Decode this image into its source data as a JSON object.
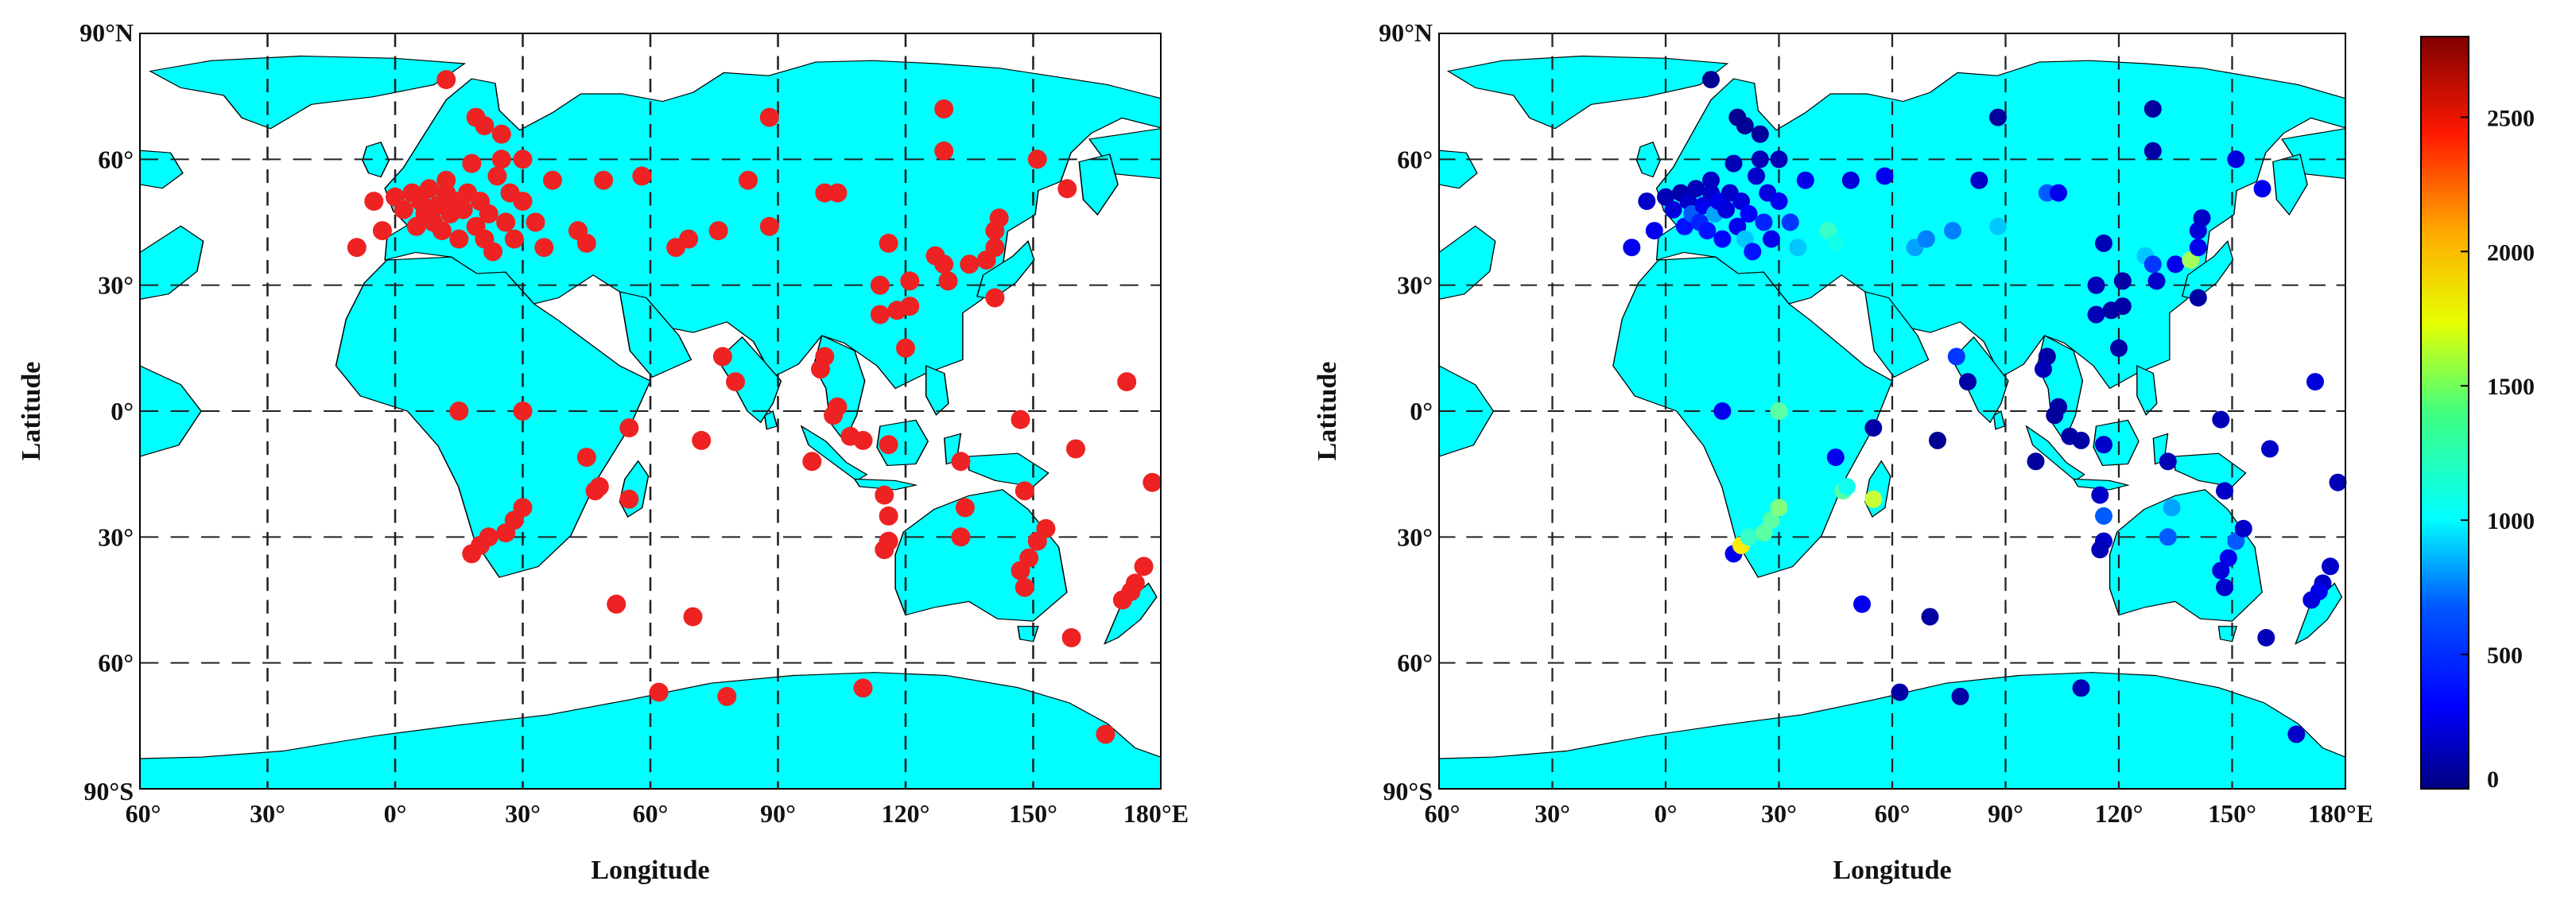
{
  "panels": [
    {
      "id": "left",
      "xlabel": "Longitude",
      "ylabel": "Latitude",
      "station_color": "#ee2222",
      "y_ticks": [
        "90°N",
        "60°",
        "30°",
        "0°",
        "30°",
        "60°",
        "90°S"
      ],
      "x_ticks": [
        "60°",
        "30°",
        "0°",
        "30°",
        "60°",
        "90°",
        "120°",
        "150°",
        "180°E"
      ]
    },
    {
      "id": "right",
      "xlabel": "Longitude",
      "ylabel": "Latitude",
      "y_ticks": [
        "90°N",
        "60°",
        "30°",
        "0°",
        "30°",
        "60°",
        "90°S"
      ],
      "x_ticks": [
        "60°",
        "30°",
        "0°",
        "30°",
        "60°",
        "90°",
        "120°",
        "150°",
        "180°E"
      ]
    }
  ],
  "map_style": {
    "land": "#00ffff",
    "ocean": "#ffffff",
    "grid": "dashed",
    "coast": "#000000"
  },
  "colorbar": {
    "ticks": [
      "2500",
      "2000",
      "1500",
      "1000",
      "500",
      "0"
    ],
    "range": [
      0,
      2800
    ],
    "colormap": "jet"
  },
  "stations": [
    {
      "lon": -9,
      "lat": 39,
      "v": 300
    },
    {
      "lon": -5,
      "lat": 50,
      "v": 200
    },
    {
      "lon": -3,
      "lat": 43,
      "v": 300
    },
    {
      "lon": 0,
      "lat": 51,
      "v": 150
    },
    {
      "lon": 2,
      "lat": 48,
      "v": 250
    },
    {
      "lon": 4,
      "lat": 52,
      "v": 120
    },
    {
      "lon": 5,
      "lat": 44,
      "v": 400
    },
    {
      "lon": 6,
      "lat": 50,
      "v": 200
    },
    {
      "lon": 7,
      "lat": 47,
      "v": 600
    },
    {
      "lon": 8,
      "lat": 53,
      "v": 150
    },
    {
      "lon": 9,
      "lat": 45,
      "v": 450
    },
    {
      "lon": 10,
      "lat": 49,
      "v": 300
    },
    {
      "lon": 11,
      "lat": 43,
      "v": 400
    },
    {
      "lon": 12,
      "lat": 52,
      "v": 200
    },
    {
      "lon": 12,
      "lat": 55,
      "v": 180
    },
    {
      "lon": 13,
      "lat": 47,
      "v": 800
    },
    {
      "lon": 14,
      "lat": 50,
      "v": 300
    },
    {
      "lon": 15,
      "lat": 41,
      "v": 350
    },
    {
      "lon": 16,
      "lat": 48,
      "v": 250
    },
    {
      "lon": 17,
      "lat": 52,
      "v": 200
    },
    {
      "lon": 18,
      "lat": 59,
      "v": 150
    },
    {
      "lon": 19,
      "lat": 44,
      "v": 300
    },
    {
      "lon": 20,
      "lat": 50,
      "v": 250
    },
    {
      "lon": 21,
      "lat": 41,
      "v": 900
    },
    {
      "lon": 22,
      "lat": 47,
      "v": 350
    },
    {
      "lon": 23,
      "lat": 38,
      "v": 400
    },
    {
      "lon": 24,
      "lat": 56,
      "v": 200
    },
    {
      "lon": 25,
      "lat": 60,
      "v": 150
    },
    {
      "lon": 26,
      "lat": 45,
      "v": 450
    },
    {
      "lon": 27,
      "lat": 52,
      "v": 250
    },
    {
      "lon": 28,
      "lat": 41,
      "v": 300
    },
    {
      "lon": 30,
      "lat": 50,
      "v": 300
    },
    {
      "lon": 30,
      "lat": 60,
      "v": 150
    },
    {
      "lon": 33,
      "lat": 45,
      "v": 500
    },
    {
      "lon": 35,
      "lat": 39,
      "v": 900
    },
    {
      "lon": 37,
      "lat": 55,
      "v": 300
    },
    {
      "lon": 12,
      "lat": 79,
      "v": 50
    },
    {
      "lon": 19,
      "lat": 70,
      "v": 50
    },
    {
      "lon": 21,
      "lat": 68,
      "v": 50
    },
    {
      "lon": 25,
      "lat": 66,
      "v": 80
    },
    {
      "lon": 43,
      "lat": 43,
      "v": 1200
    },
    {
      "lon": 45,
      "lat": 40,
      "v": 1100
    },
    {
      "lon": 49,
      "lat": 55,
      "v": 250
    },
    {
      "lon": 58,
      "lat": 56,
      "v": 300
    },
    {
      "lon": 66,
      "lat": 39,
      "v": 800
    },
    {
      "lon": 69,
      "lat": 41,
      "v": 700
    },
    {
      "lon": 76,
      "lat": 43,
      "v": 700
    },
    {
      "lon": 83,
      "lat": 55,
      "v": 200
    },
    {
      "lon": 88,
      "lat": 44,
      "v": 900
    },
    {
      "lon": 88,
      "lat": 70,
      "v": 80
    },
    {
      "lon": 101,
      "lat": 52,
      "v": 600
    },
    {
      "lon": 104,
      "lat": 52,
      "v": 300
    },
    {
      "lon": 116,
      "lat": 40,
      "v": 150
    },
    {
      "lon": 114,
      "lat": 30,
      "v": 150
    },
    {
      "lon": 114,
      "lat": 23,
      "v": 150
    },
    {
      "lon": 118,
      "lat": 24,
      "v": 100
    },
    {
      "lon": 121,
      "lat": 25,
      "v": 100
    },
    {
      "lon": 121,
      "lat": 31,
      "v": 100
    },
    {
      "lon": 120,
      "lat": 15,
      "v": 100
    },
    {
      "lon": 127,
      "lat": 37,
      "v": 900
    },
    {
      "lon": 129,
      "lat": 35,
      "v": 500
    },
    {
      "lon": 130,
      "lat": 31,
      "v": 200
    },
    {
      "lon": 135,
      "lat": 35,
      "v": 300
    },
    {
      "lon": 139,
      "lat": 36,
      "v": 1500
    },
    {
      "lon": 141,
      "lat": 43,
      "v": 250
    },
    {
      "lon": 142,
      "lat": 46,
      "v": 200
    },
    {
      "lon": 141,
      "lat": 39,
      "v": 300
    },
    {
      "lon": 141,
      "lat": 27,
      "v": 100
    },
    {
      "lon": 129,
      "lat": 72,
      "v": 80
    },
    {
      "lon": 129,
      "lat": 62,
      "v": 100
    },
    {
      "lon": 151,
      "lat": 60,
      "v": 250
    },
    {
      "lon": 158,
      "lat": 53,
      "v": 300
    },
    {
      "lon": 77,
      "lat": 13,
      "v": 500
    },
    {
      "lon": 80,
      "lat": 7,
      "v": 100
    },
    {
      "lon": 101,
      "lat": 13,
      "v": 100
    },
    {
      "lon": 100,
      "lat": 10,
      "v": 150
    },
    {
      "lon": 104,
      "lat": 1,
      "v": 100
    },
    {
      "lon": 110,
      "lat": -7,
      "v": 100
    },
    {
      "lon": 107,
      "lat": -6,
      "v": 100
    },
    {
      "lon": 116,
      "lat": -8,
      "v": 200
    },
    {
      "lon": 98,
      "lat": -12,
      "v": 80
    },
    {
      "lon": 103,
      "lat": -1,
      "v": 80
    },
    {
      "lon": 15,
      "lat": 0,
      "v": 300
    },
    {
      "lon": 30,
      "lat": 0,
      "v": 1300
    },
    {
      "lon": 45,
      "lat": -11,
      "v": 300
    },
    {
      "lon": 47,
      "lat": -19,
      "v": 1300
    },
    {
      "lon": 48,
      "lat": -18,
      "v": 1100
    },
    {
      "lon": 55,
      "lat": -4,
      "v": 100
    },
    {
      "lon": 55,
      "lat": -21,
      "v": 1600
    },
    {
      "lon": 72,
      "lat": -7,
      "v": 50
    },
    {
      "lon": 18,
      "lat": -34,
      "v": 300
    },
    {
      "lon": 20,
      "lat": -32,
      "v": 1800
    },
    {
      "lon": 22,
      "lat": -30,
      "v": 1200
    },
    {
      "lon": 26,
      "lat": -29,
      "v": 1300
    },
    {
      "lon": 28,
      "lat": -26,
      "v": 1300
    },
    {
      "lon": 30,
      "lat": -23,
      "v": 1400
    },
    {
      "lon": 52,
      "lat": -46,
      "v": 300
    },
    {
      "lon": 70,
      "lat": -49,
      "v": 100
    },
    {
      "lon": 62,
      "lat": -67,
      "v": 100
    },
    {
      "lon": 78,
      "lat": -68,
      "v": 100
    },
    {
      "lon": 110,
      "lat": -66,
      "v": 150
    },
    {
      "lon": 167,
      "lat": -77,
      "v": 200
    },
    {
      "lon": 115,
      "lat": -20,
      "v": 200
    },
    {
      "lon": 116,
      "lat": -25,
      "v": 600
    },
    {
      "lon": 116,
      "lat": -31,
      "v": 200
    },
    {
      "lon": 115,
      "lat": -33,
      "v": 150
    },
    {
      "lon": 133,
      "lat": -12,
      "v": 150
    },
    {
      "lon": 134,
      "lat": -23,
      "v": 800
    },
    {
      "lon": 133,
      "lat": -30,
      "v": 600
    },
    {
      "lon": 148,
      "lat": -19,
      "v": 200
    },
    {
      "lon": 149,
      "lat": -35,
      "v": 300
    },
    {
      "lon": 151,
      "lat": -31,
      "v": 600
    },
    {
      "lon": 147,
      "lat": -38,
      "v": 250
    },
    {
      "lon": 148,
      "lat": -42,
      "v": 200
    },
    {
      "lon": 153,
      "lat": -28,
      "v": 200
    },
    {
      "lon": 147,
      "lat": -2,
      "v": 150
    },
    {
      "lon": 160,
      "lat": -9,
      "v": 200
    },
    {
      "lon": 172,
      "lat": 7,
      "v": 250
    },
    {
      "lon": 178,
      "lat": -17,
      "v": 150
    },
    {
      "lon": 159,
      "lat": -54,
      "v": 150
    },
    {
      "lon": 174,
      "lat": -41,
      "v": 200
    },
    {
      "lon": 173,
      "lat": -43,
      "v": 300
    },
    {
      "lon": 171,
      "lat": -45,
      "v": 250
    },
    {
      "lon": 176,
      "lat": -37,
      "v": 200
    }
  ]
}
